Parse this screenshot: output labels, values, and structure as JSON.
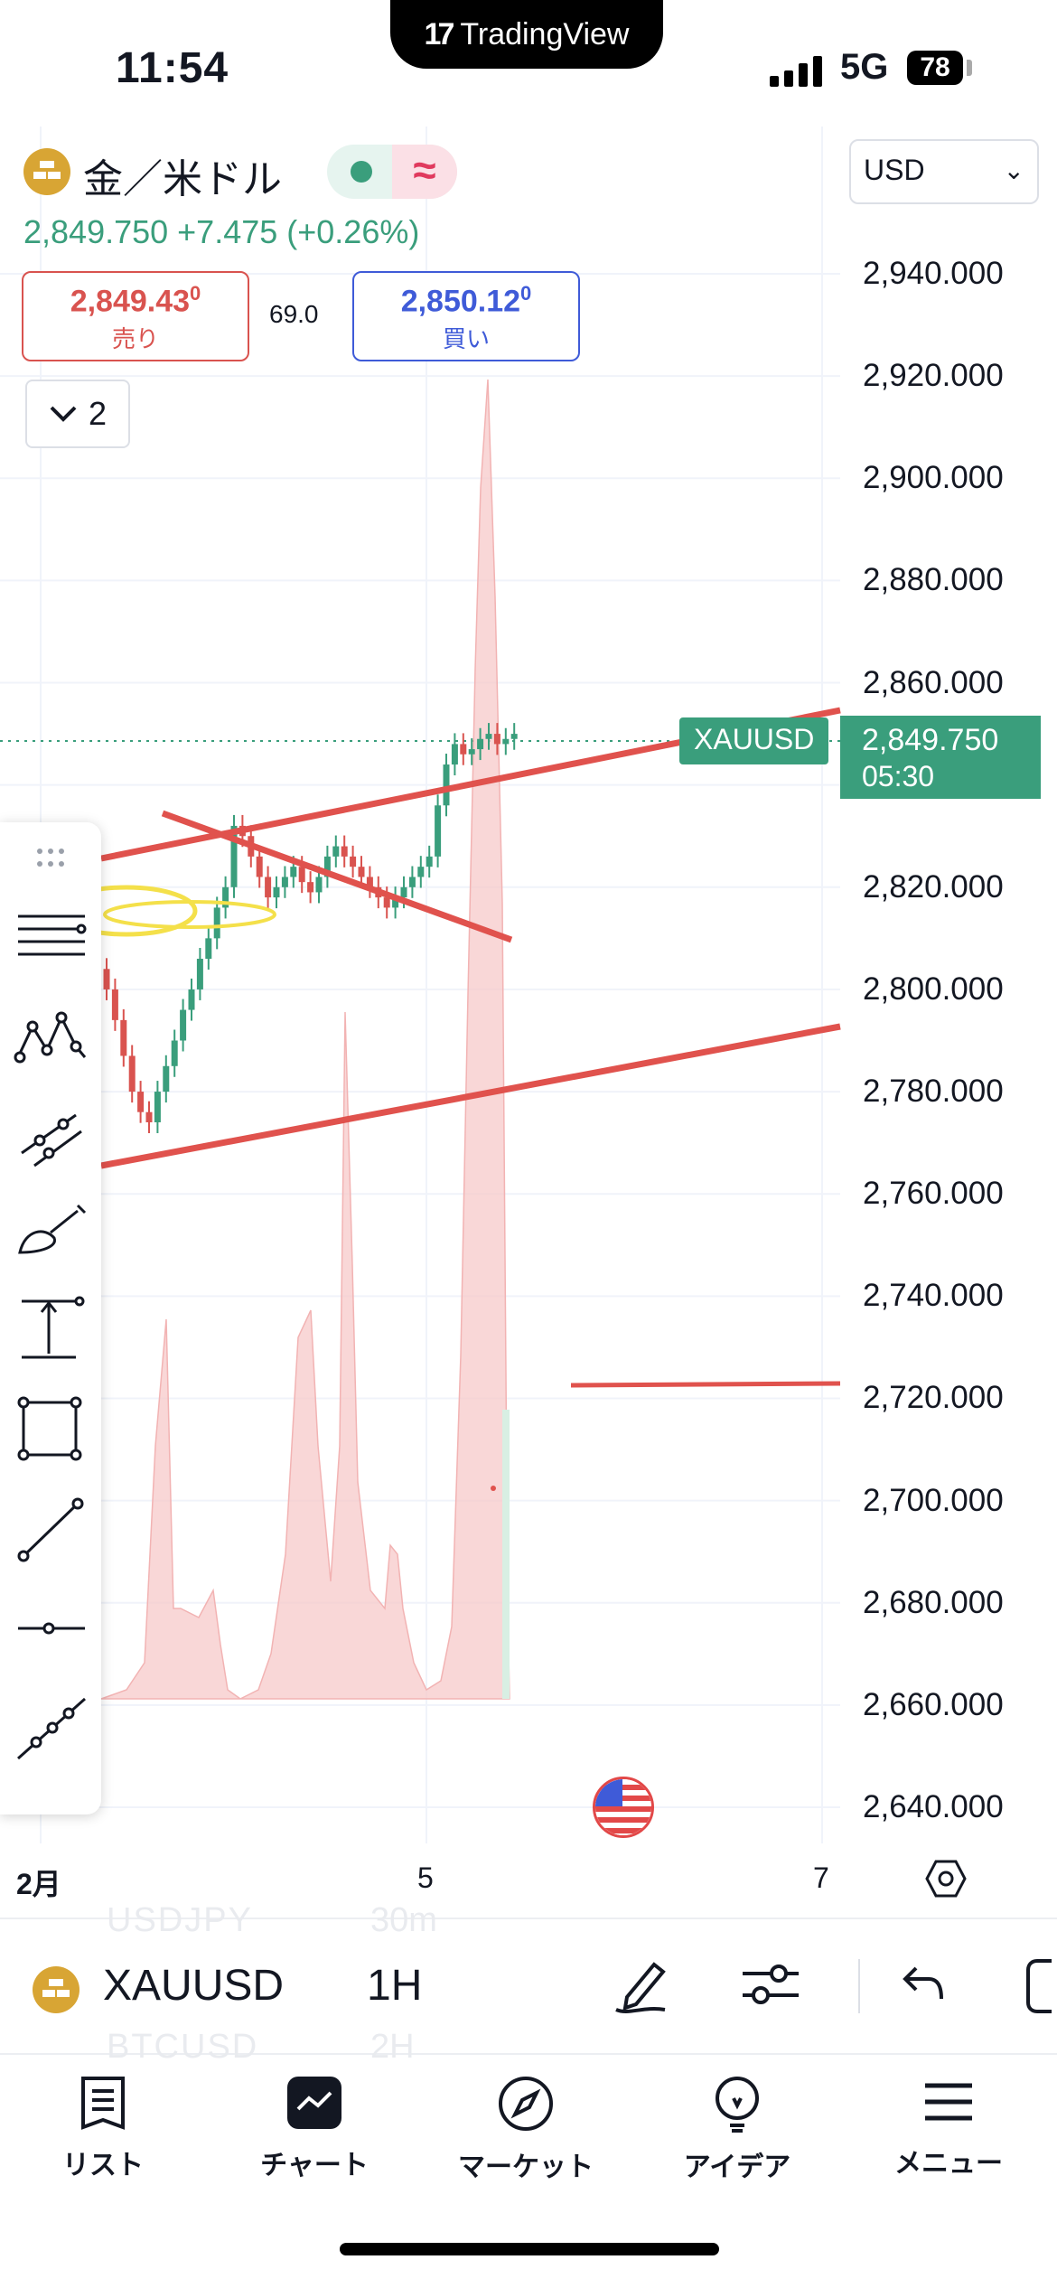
{
  "status_bar": {
    "time": "11:54",
    "app_badge": "TradingView",
    "network": "5G",
    "battery": "78"
  },
  "header": {
    "symbol_name": "金／米ドル",
    "status_icon": "≈",
    "price_change": "2,849.750  +7.475 (+0.26%)",
    "sell_price": "2,849.43",
    "sell_sup": "0",
    "sell_label": "売り",
    "spread": "69.0",
    "buy_price": "2,850.12",
    "buy_sup": "0",
    "buy_label": "買い",
    "layers_count": "2",
    "currency": "USD"
  },
  "chart": {
    "y_ticks": [
      "2,940.000",
      "2,920.000",
      "2,900.000",
      "2,880.000",
      "2,860.000",
      "2,820.000",
      "2,800.000",
      "2,780.000",
      "2,760.000",
      "2,740.000",
      "2,720.000",
      "2,700.000",
      "2,680.000",
      "2,660.000",
      "2,640.000"
    ],
    "x_ticks": [
      "2月",
      "5",
      "7"
    ],
    "last_price": "2,849.750",
    "countdown": "05:30",
    "symbol_tag": "XAUUSD",
    "colors": {
      "up": "#3a9e7c",
      "down": "#d9534f",
      "trendline": "#e0524d",
      "volume": "#f7c9c9"
    }
  },
  "draw_tools": [
    "drag-handle-icon",
    "horizontal-lines-icon",
    "pattern-icon",
    "trend-line-icon",
    "brush-icon",
    "measure-icon",
    "rectangle-icon",
    "line-icon",
    "horizontal-ray-icon",
    "path-icon"
  ],
  "symbol_bar": {
    "symbol": "XAUUSD",
    "interval": "1H",
    "ghost_prev_symbol": "USDJPY",
    "ghost_prev_interval": "30m",
    "ghost_next_symbol": "BTCUSD",
    "ghost_next_interval": "2H"
  },
  "tabs": [
    {
      "label": "リスト",
      "icon": "list-icon"
    },
    {
      "label": "チャート",
      "icon": "chart-icon"
    },
    {
      "label": "マーケット",
      "icon": "compass-icon"
    },
    {
      "label": "アイデア",
      "icon": "lightbulb-icon"
    },
    {
      "label": "メニュー",
      "icon": "menu-icon"
    }
  ]
}
